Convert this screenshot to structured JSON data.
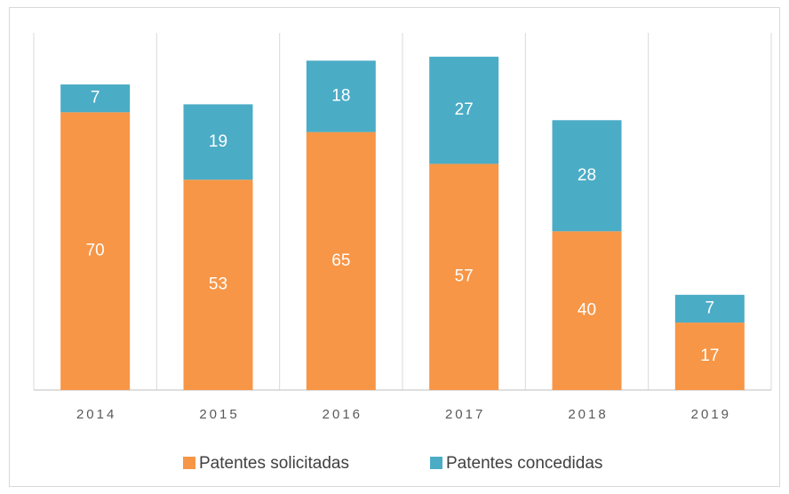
{
  "chart_data": {
    "type": "stacked_bar",
    "categories": [
      "2014",
      "2015",
      "2016",
      "2017",
      "2018",
      "2019"
    ],
    "series": [
      {
        "name": "Patentes solicitadas",
        "color": "#f79646",
        "values": [
          70,
          53,
          65,
          57,
          40,
          17
        ]
      },
      {
        "name": "Patentes concedidas",
        "color": "#4bacc6",
        "values": [
          7,
          19,
          18,
          27,
          28,
          7
        ]
      }
    ],
    "ylim": [
      0,
      90
    ],
    "legend": "bottom"
  }
}
